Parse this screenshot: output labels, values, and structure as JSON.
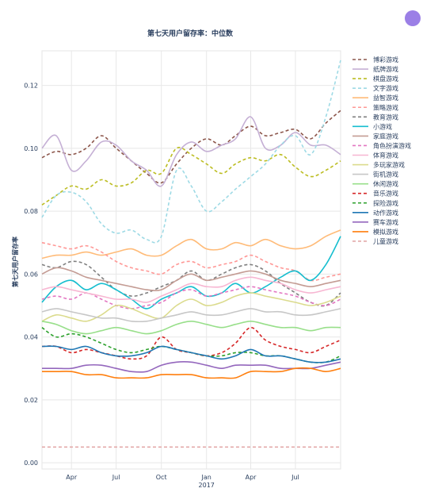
{
  "chart_data": {
    "type": "line",
    "title": "第七天用户留存率：中位数",
    "xlabel": "",
    "ylabel": "第七天用户留存率",
    "x_range": [
      "2016-02-01",
      "2017-10-01"
    ],
    "x_ticks": [
      {
        "date": "2016-04-01",
        "label": "Apr"
      },
      {
        "date": "2016-07-01",
        "label": "Jul"
      },
      {
        "date": "2016-10-01",
        "label": "Oct"
      },
      {
        "date": "2017-01-01",
        "label": "Jan"
      },
      {
        "date": "2017-04-01",
        "label": "Apr"
      },
      {
        "date": "2017-07-01",
        "label": "Jul"
      }
    ],
    "x_year_label": {
      "date": "2017-01-01",
      "label": "2017"
    },
    "y_ticks": [
      0.0,
      0.02,
      0.04,
      0.06,
      0.08,
      0.1,
      0.12
    ],
    "ylim": [
      -0.002,
      0.131
    ],
    "grid": true,
    "legend_position": "right",
    "x_dates": [
      "2016-02-01",
      "2016-03-01",
      "2016-04-01",
      "2016-05-01",
      "2016-06-01",
      "2016-07-01",
      "2016-08-01",
      "2016-09-01",
      "2016-10-01",
      "2016-11-01",
      "2016-12-01",
      "2017-01-01",
      "2017-02-01",
      "2017-03-01",
      "2017-04-01",
      "2017-05-01",
      "2017-06-01",
      "2017-07-01",
      "2017-08-01",
      "2017-09-01",
      "2017-10-01"
    ],
    "series": [
      {
        "name": "博彩游戏",
        "color": "#8c564b",
        "dash": true,
        "values": [
          0.097,
          0.099,
          0.098,
          0.1,
          0.104,
          0.1,
          0.096,
          0.092,
          0.089,
          0.095,
          0.1,
          0.103,
          0.101,
          0.104,
          0.107,
          0.104,
          0.105,
          0.106,
          0.103,
          0.108,
          0.112
        ]
      },
      {
        "name": "纸牌游戏",
        "color": "#c5b0d5",
        "dash": false,
        "values": [
          0.1,
          0.104,
          0.093,
          0.096,
          0.102,
          0.101,
          0.096,
          0.093,
          0.088,
          0.098,
          0.102,
          0.099,
          0.101,
          0.103,
          0.11,
          0.1,
          0.101,
          0.105,
          0.101,
          0.101,
          0.098
        ]
      },
      {
        "name": "棋盘游戏",
        "color": "#bcbd22",
        "dash": true,
        "values": [
          0.082,
          0.085,
          0.088,
          0.087,
          0.09,
          0.088,
          0.089,
          0.093,
          0.092,
          0.1,
          0.098,
          0.095,
          0.092,
          0.095,
          0.097,
          0.096,
          0.098,
          0.094,
          0.091,
          0.093,
          0.096
        ]
      },
      {
        "name": "文字游戏",
        "color": "#9edae5",
        "dash": true,
        "values": [
          0.078,
          0.085,
          0.086,
          0.083,
          0.076,
          0.073,
          0.074,
          0.071,
          0.072,
          0.093,
          0.088,
          0.08,
          0.083,
          0.087,
          0.091,
          0.095,
          0.101,
          0.104,
          0.098,
          0.11,
          0.128
        ]
      },
      {
        "name": "益智游戏",
        "color": "#ffbb78",
        "dash": false,
        "values": [
          0.065,
          0.066,
          0.066,
          0.067,
          0.066,
          0.067,
          0.068,
          0.066,
          0.066,
          0.069,
          0.071,
          0.068,
          0.068,
          0.07,
          0.069,
          0.071,
          0.069,
          0.068,
          0.069,
          0.072,
          0.074
        ]
      },
      {
        "name": "策略游戏",
        "color": "#ff9896",
        "dash": true,
        "values": [
          0.07,
          0.069,
          0.068,
          0.069,
          0.067,
          0.064,
          0.062,
          0.061,
          0.06,
          0.063,
          0.064,
          0.062,
          0.063,
          0.064,
          0.066,
          0.064,
          0.062,
          0.061,
          0.058,
          0.059,
          0.06
        ]
      },
      {
        "name": "教育游戏",
        "color": "#7f7f7f",
        "dash": true,
        "values": [
          0.063,
          0.062,
          0.064,
          0.063,
          0.059,
          0.055,
          0.053,
          0.054,
          0.056,
          0.058,
          0.061,
          0.058,
          0.06,
          0.062,
          0.063,
          0.061,
          0.057,
          0.054,
          0.051,
          0.05,
          0.054
        ]
      },
      {
        "name": "小游戏",
        "color": "#17becf",
        "dash": false,
        "values": [
          0.051,
          0.056,
          0.058,
          0.055,
          0.057,
          0.055,
          0.052,
          0.049,
          0.052,
          0.054,
          0.056,
          0.053,
          0.054,
          0.057,
          0.054,
          0.056,
          0.059,
          0.061,
          0.058,
          0.063,
          0.072
        ]
      },
      {
        "name": "家庭游戏",
        "color": "#c49c94",
        "dash": false,
        "values": [
          0.06,
          0.062,
          0.061,
          0.059,
          0.058,
          0.057,
          0.056,
          0.055,
          0.055,
          0.058,
          0.06,
          0.058,
          0.059,
          0.06,
          0.061,
          0.06,
          0.058,
          0.057,
          0.056,
          0.057,
          0.058
        ]
      },
      {
        "name": "角色扮演游戏",
        "color": "#e377c2",
        "dash": true,
        "values": [
          0.052,
          0.053,
          0.052,
          0.054,
          0.052,
          0.05,
          0.049,
          0.05,
          0.051,
          0.054,
          0.055,
          0.053,
          0.054,
          0.055,
          0.056,
          0.055,
          0.054,
          0.053,
          0.051,
          0.05,
          0.052
        ]
      },
      {
        "name": "体育游戏",
        "color": "#f7b6d2",
        "dash": false,
        "values": [
          0.055,
          0.056,
          0.055,
          0.054,
          0.053,
          0.052,
          0.052,
          0.051,
          0.053,
          0.055,
          0.057,
          0.056,
          0.056,
          0.058,
          0.059,
          0.058,
          0.057,
          0.055,
          0.054,
          0.055,
          0.056
        ]
      },
      {
        "name": "多玩家游戏",
        "color": "#dbdb8d",
        "dash": false,
        "values": [
          0.045,
          0.047,
          0.046,
          0.045,
          0.047,
          0.05,
          0.049,
          0.047,
          0.046,
          0.05,
          0.052,
          0.05,
          0.051,
          0.053,
          0.054,
          0.053,
          0.052,
          0.051,
          0.05,
          0.051,
          0.053
        ]
      },
      {
        "name": "街机游戏",
        "color": "#c7c7c7",
        "dash": false,
        "values": [
          0.048,
          0.049,
          0.048,
          0.047,
          0.046,
          0.046,
          0.045,
          0.045,
          0.046,
          0.047,
          0.048,
          0.047,
          0.047,
          0.048,
          0.049,
          0.048,
          0.048,
          0.047,
          0.047,
          0.048,
          0.049
        ]
      },
      {
        "name": "休闲游戏",
        "color": "#98df8a",
        "dash": false,
        "values": [
          0.045,
          0.044,
          0.042,
          0.041,
          0.042,
          0.043,
          0.042,
          0.041,
          0.042,
          0.044,
          0.045,
          0.044,
          0.043,
          0.044,
          0.045,
          0.044,
          0.043,
          0.043,
          0.042,
          0.043,
          0.043
        ]
      },
      {
        "name": "音乐游戏",
        "color": "#d62728",
        "dash": true,
        "values": [
          0.037,
          0.037,
          0.035,
          0.036,
          0.035,
          0.034,
          0.033,
          0.034,
          0.04,
          0.036,
          0.035,
          0.034,
          0.035,
          0.038,
          0.043,
          0.039,
          0.037,
          0.036,
          0.035,
          0.037,
          0.039
        ]
      },
      {
        "name": "探险游戏",
        "color": "#2ca02c",
        "dash": true,
        "values": [
          0.043,
          0.04,
          0.041,
          0.04,
          0.038,
          0.036,
          0.035,
          0.036,
          0.037,
          0.036,
          0.035,
          0.034,
          0.034,
          0.035,
          0.035,
          0.034,
          0.034,
          0.033,
          0.032,
          0.032,
          0.034
        ]
      },
      {
        "name": "动作游戏",
        "color": "#1f77b4",
        "dash": false,
        "values": [
          0.037,
          0.037,
          0.036,
          0.037,
          0.035,
          0.034,
          0.034,
          0.035,
          0.037,
          0.036,
          0.035,
          0.034,
          0.033,
          0.034,
          0.036,
          0.034,
          0.034,
          0.033,
          0.032,
          0.032,
          0.033
        ]
      },
      {
        "name": "赛车游戏",
        "color": "#9467bd",
        "dash": false,
        "values": [
          0.03,
          0.03,
          0.03,
          0.031,
          0.031,
          0.03,
          0.029,
          0.029,
          0.031,
          0.032,
          0.032,
          0.031,
          0.03,
          0.031,
          0.031,
          0.031,
          0.03,
          0.03,
          0.03,
          0.031,
          0.032
        ]
      },
      {
        "name": "模拟游戏",
        "color": "#ff7f0e",
        "dash": false,
        "values": [
          0.029,
          0.029,
          0.029,
          0.028,
          0.028,
          0.027,
          0.027,
          0.027,
          0.028,
          0.028,
          0.028,
          0.027,
          0.027,
          0.027,
          0.029,
          0.029,
          0.029,
          0.03,
          0.03,
          0.029,
          0.03
        ]
      },
      {
        "name": "儿童游戏",
        "color": "#e3a9a9",
        "dash": true,
        "values": [
          0.005,
          0.005,
          0.005,
          0.005,
          0.005,
          0.005,
          0.005,
          0.005,
          0.005,
          0.005,
          0.005,
          0.005,
          0.005,
          0.005,
          0.005,
          0.005,
          0.005,
          0.005,
          0.005,
          0.005,
          0.005
        ]
      }
    ]
  }
}
